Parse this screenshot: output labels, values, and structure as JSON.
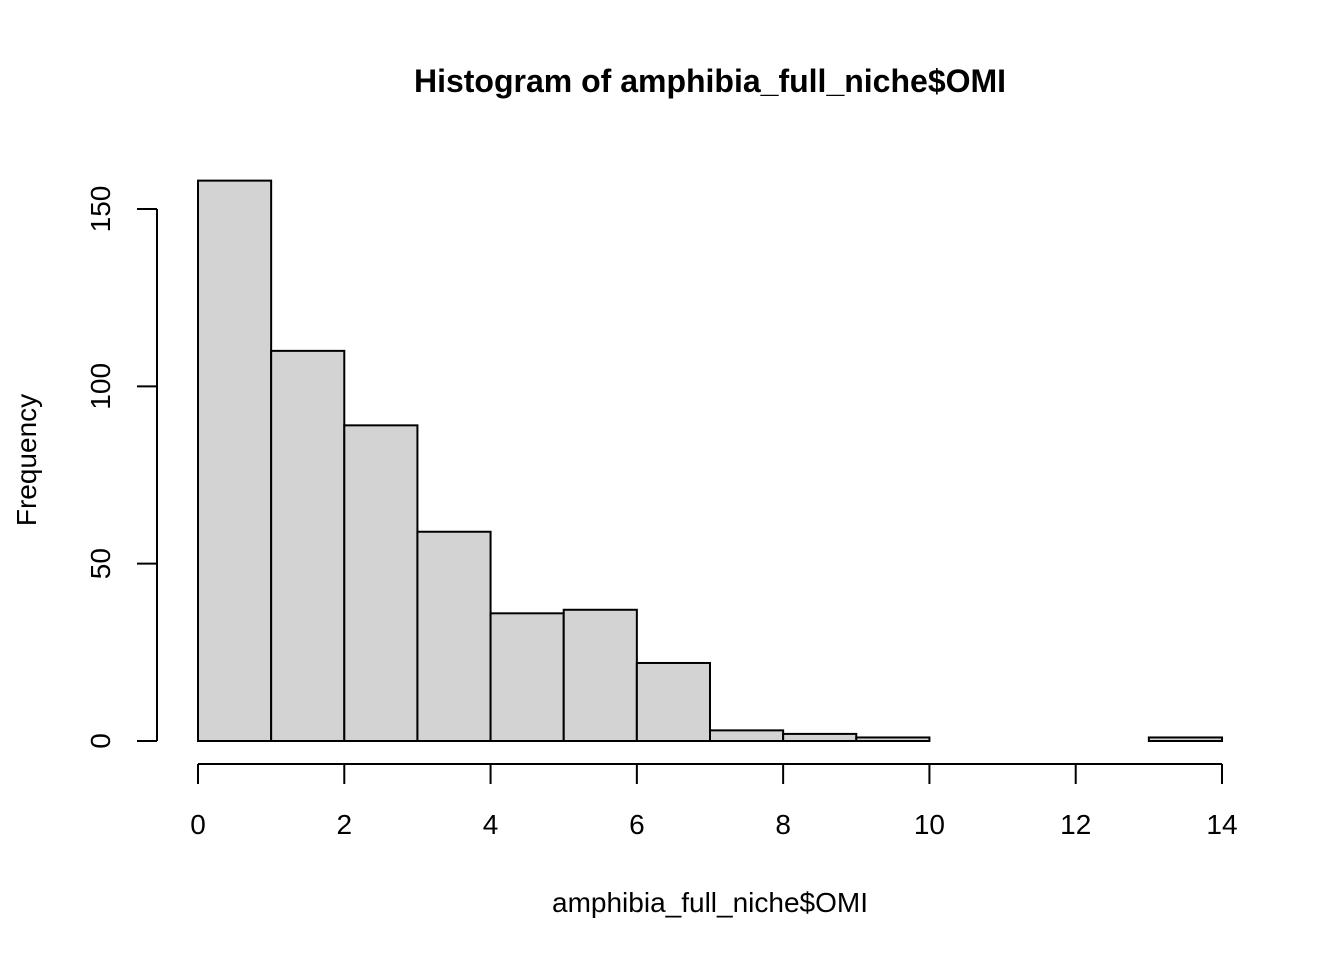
{
  "chart_data": {
    "type": "bar",
    "title": "Histogram of amphibia_full_niche$OMI",
    "xlabel": "amphibia_full_niche$OMI",
    "ylabel": "Frequency",
    "bin_edges": [
      0,
      1,
      2,
      3,
      4,
      5,
      6,
      7,
      8,
      9,
      10,
      11,
      12,
      13,
      14
    ],
    "values": [
      158,
      110,
      89,
      59,
      36,
      37,
      22,
      3,
      2,
      1,
      0,
      0,
      0,
      1
    ],
    "xlim": [
      0,
      14
    ],
    "ylim": [
      0,
      150
    ],
    "x_ticks": [
      0,
      2,
      4,
      6,
      8,
      10,
      12,
      14
    ],
    "y_ticks": [
      0,
      50,
      100,
      150
    ],
    "bar_fill": "#d3d3d3",
    "bar_stroke": "#000000",
    "grid": false,
    "legend": "none"
  }
}
